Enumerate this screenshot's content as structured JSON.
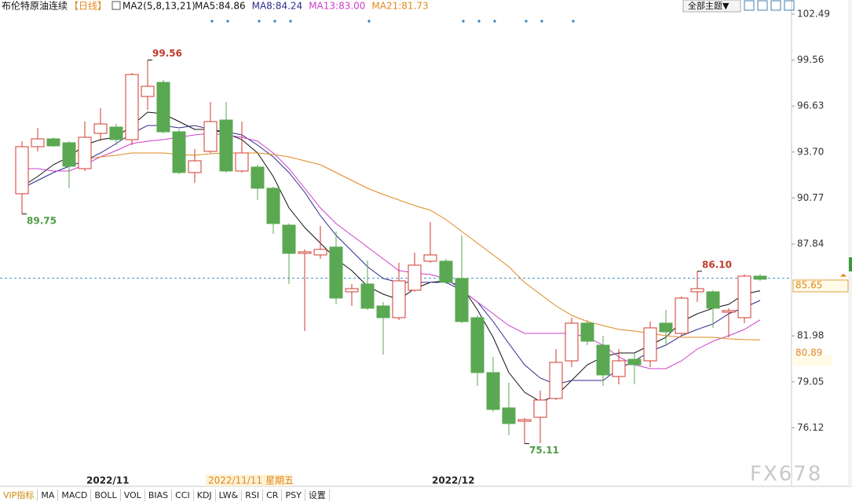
{
  "chart_data": {
    "type": "candlestick",
    "title": "布伦特原油连续",
    "period": "【日线】",
    "indicator": "MA2(5,8,13,21)",
    "categories": [
      null,
      null,
      null,
      null,
      "2022/11",
      null,
      null,
      null,
      null,
      null,
      null,
      null,
      null,
      null,
      null,
      null,
      null,
      null,
      null,
      null,
      null,
      null,
      null,
      null,
      null,
      null,
      "2022/12",
      null,
      null,
      null,
      null,
      null,
      null,
      null,
      null,
      null,
      null,
      null,
      null,
      null,
      null,
      null,
      null,
      null,
      null,
      null,
      null,
      null
    ],
    "open": [
      91.04,
      94.04,
      94.54,
      94.29,
      92.64,
      94.89,
      95.29,
      94.49,
      97.24,
      98.14,
      94.99,
      92.39,
      93.74,
      95.74,
      92.49,
      92.74,
      91.39,
      89.04,
      87.24,
      87.14,
      87.64,
      84.79,
      85.29,
      83.89,
      83.14,
      84.89,
      86.74,
      86.74,
      85.64,
      83.14,
      79.64,
      77.39,
      76.54,
      76.79,
      77.99,
      80.39,
      82.79,
      81.39,
      79.39,
      80.49,
      80.39,
      82.79,
      82.14,
      84.79,
      84.79,
      83.49,
      83.14,
      85.79
    ],
    "high": [
      94.39,
      95.24,
      94.64,
      94.39,
      95.64,
      96.49,
      95.49,
      98.74,
      99.56,
      98.29,
      95.14,
      93.89,
      96.89,
      96.89,
      95.64,
      92.89,
      91.49,
      89.14,
      87.49,
      88.99,
      88.64,
      85.29,
      86.79,
      84.14,
      86.64,
      87.29,
      89.24,
      86.89,
      88.39,
      83.29,
      80.64,
      78.99,
      76.74,
      78.49,
      81.14,
      83.14,
      82.99,
      81.99,
      81.14,
      80.89,
      82.89,
      83.64,
      84.49,
      86.1,
      84.89,
      83.74,
      85.89,
      85.89
    ],
    "low": [
      89.75,
      93.74,
      94.04,
      91.39,
      92.49,
      94.39,
      94.14,
      94.14,
      96.39,
      94.89,
      92.29,
      91.74,
      93.64,
      92.39,
      92.39,
      90.64,
      88.49,
      85.29,
      82.29,
      86.89,
      83.99,
      83.89,
      83.64,
      80.79,
      82.99,
      84.79,
      86.64,
      85.29,
      82.79,
      78.79,
      77.14,
      75.64,
      75.11,
      75.14,
      77.89,
      79.99,
      81.39,
      78.79,
      78.89,
      78.89,
      79.99,
      81.39,
      81.99,
      84.14,
      82.49,
      81.89,
      82.79,
      85.49
    ],
    "close": [
      94.04,
      94.54,
      94.09,
      92.79,
      94.64,
      95.49,
      94.49,
      98.64,
      97.89,
      94.99,
      92.39,
      93.14,
      95.64,
      92.49,
      93.64,
      91.39,
      89.14,
      87.24,
      87.34,
      87.49,
      84.39,
      84.99,
      83.74,
      83.14,
      85.49,
      86.49,
      87.14,
      85.39,
      82.89,
      79.64,
      77.29,
      76.39,
      76.64,
      77.89,
      80.29,
      82.79,
      81.64,
      79.49,
      80.39,
      80.14,
      82.49,
      82.24,
      84.39,
      84.99,
      83.74,
      83.59,
      85.79,
      85.59
    ],
    "up_color": "#d03a2f",
    "down_color": "#5aa852",
    "series": [
      {
        "name": "MA5:84.86",
        "color": "#111111",
        "values": [
          91.49,
          92.14,
          92.89,
          93.39,
          94.14,
          94.49,
          94.64,
          95.39,
          96.24,
          96.14,
          95.64,
          95.14,
          95.14,
          94.89,
          94.49,
          93.64,
          92.14,
          90.14,
          88.89,
          87.89,
          86.89,
          86.14,
          85.14,
          84.64,
          84.29,
          84.99,
          85.39,
          85.49,
          85.14,
          83.64,
          81.89,
          79.64,
          78.39,
          77.79,
          78.14,
          79.14,
          80.14,
          80.64,
          80.89,
          80.89,
          81.39,
          81.89,
          82.89,
          83.39,
          83.74,
          83.99,
          84.64,
          84.86
        ]
      },
      {
        "name": "MA8:84.24",
        "color": "#2b2b8c",
        "values": [
          91.39,
          91.89,
          92.39,
          92.79,
          93.14,
          93.64,
          94.24,
          94.89,
          95.39,
          95.39,
          95.24,
          95.39,
          95.14,
          94.99,
          94.79,
          94.14,
          93.39,
          92.39,
          91.14,
          89.64,
          88.39,
          87.39,
          86.39,
          85.64,
          85.39,
          85.39,
          85.39,
          85.39,
          84.89,
          84.14,
          82.89,
          81.49,
          80.14,
          79.29,
          78.89,
          79.14,
          79.14,
          79.14,
          79.89,
          80.39,
          80.99,
          81.39,
          81.99,
          82.39,
          82.74,
          83.39,
          83.79,
          84.24
        ]
      },
      {
        "name": "MA13:83.00",
        "color": "#cc3fcc",
        "values": [
          92.64,
          92.64,
          92.49,
          92.49,
          92.89,
          93.39,
          93.79,
          94.24,
          94.39,
          94.49,
          94.64,
          94.79,
          94.89,
          94.79,
          94.64,
          94.39,
          93.64,
          92.64,
          91.39,
          90.14,
          89.14,
          88.39,
          87.64,
          86.89,
          86.14,
          85.99,
          85.89,
          85.64,
          84.89,
          84.14,
          83.39,
          82.64,
          82.14,
          82.14,
          82.14,
          82.14,
          81.89,
          81.39,
          80.64,
          80.14,
          79.89,
          79.89,
          80.39,
          81.14,
          81.64,
          81.99,
          82.39,
          83.0
        ]
      },
      {
        "name": "MA21:81.73",
        "color": "#e0881e",
        "values": [
          null,
          null,
          null,
          null,
          93.24,
          93.39,
          93.49,
          93.64,
          93.64,
          93.64,
          93.54,
          93.49,
          93.59,
          93.64,
          93.64,
          93.64,
          93.54,
          93.39,
          93.14,
          92.89,
          92.39,
          91.89,
          91.39,
          90.99,
          90.64,
          90.29,
          89.99,
          89.39,
          88.64,
          87.89,
          87.14,
          86.39,
          85.39,
          84.64,
          83.89,
          83.29,
          82.89,
          82.64,
          82.39,
          82.29,
          82.14,
          81.99,
          81.89,
          81.89,
          81.89,
          81.79,
          81.74,
          81.73
        ]
      }
    ],
    "annotations": [
      {
        "value": 99.56,
        "label": "99.56",
        "color": "#c0392b"
      },
      {
        "value": 89.75,
        "label": "89.75",
        "color": "#4e9a46"
      },
      {
        "value": 86.1,
        "label": "86.10",
        "color": "#c0392b"
      },
      {
        "value": 75.11,
        "label": "75.11",
        "color": "#4e9a46"
      }
    ],
    "current_price": 85.65,
    "marker_price": 80.89,
    "crosshair_label": "2022/11/11 星期五",
    "ylim": [
      73.39,
      103.39
    ],
    "yticks": [
      102.49,
      99.56,
      96.63,
      {
        "value": 93.7,
        "label": "93.70"
      },
      90.77,
      87.84,
      81.98,
      79.05,
      76.12
    ],
    "grid": false,
    "theme_button": "全部主题▼",
    "watermark": "FX678",
    "toolbar": [
      "VIP指标",
      "MA",
      "MACD",
      "BOLL",
      "VOL",
      "BIAS",
      "CCI",
      "KDJ",
      "LW&",
      "RSI",
      "CR",
      "PSY",
      "设置"
    ]
  }
}
